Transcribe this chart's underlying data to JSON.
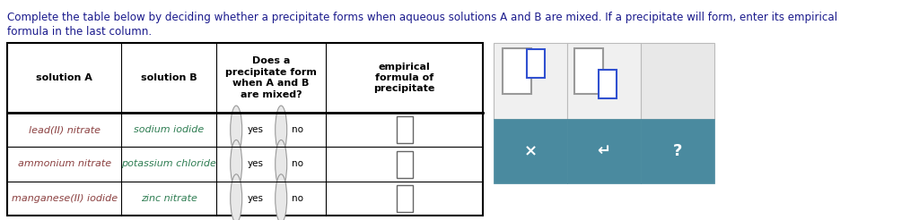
{
  "title_line1": "Complete the table below by deciding whether a precipitate forms when aqueous solutions A and B are mixed. If a precipitate will form, enter its empirical",
  "title_line2": "formula in the last column.",
  "title_color": "#1a1a8c",
  "title_bold_words": [
    "A",
    "B"
  ],
  "bg_color": "#ffffff",
  "col_headers": [
    "solution A",
    "solution B",
    "Does a\nprecipitate form\nwhen A and B\nare mixed?",
    "empirical\nformula of\nprecipitate"
  ],
  "rows": [
    [
      "lead(II) nitrate",
      "sodium iodide"
    ],
    [
      "ammonium nitrate",
      "potassium chloride"
    ],
    [
      "manganese(II) iodide",
      "zinc nitrate"
    ]
  ],
  "color_a": "#8b4040",
  "color_b": "#2e7d52",
  "teal_color": "#4a8a9f",
  "teal_dark": "#3a7a8f",
  "btn_bg": "#f0f0f0",
  "gray_box": "#c0c0c0",
  "blue_box": "#3050d0",
  "light_gray_cell": "#ebebeb"
}
